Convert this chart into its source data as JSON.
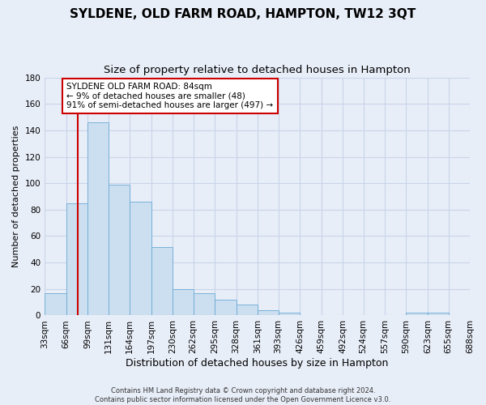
{
  "title": "SYLDENE, OLD FARM ROAD, HAMPTON, TW12 3QT",
  "subtitle": "Size of property relative to detached houses in Hampton",
  "xlabel": "Distribution of detached houses by size in Hampton",
  "ylabel": "Number of detached properties",
  "footer_line1": "Contains HM Land Registry data © Crown copyright and database right 2024.",
  "footer_line2": "Contains public sector information licensed under the Open Government Licence v3.0.",
  "bins": [
    33,
    66,
    99,
    131,
    164,
    197,
    230,
    262,
    295,
    328,
    361,
    393,
    426,
    459,
    492,
    524,
    557,
    590,
    623,
    655,
    688
  ],
  "bar_heights": [
    17,
    85,
    146,
    99,
    86,
    52,
    20,
    17,
    12,
    8,
    4,
    2,
    0,
    0,
    0,
    0,
    0,
    2,
    2,
    0
  ],
  "bar_color": "#ccdff0",
  "bar_edge_color": "#6aaad4",
  "property_line_x": 84,
  "property_line_color": "#cc0000",
  "annotation_text": "SYLDENE OLD FARM ROAD: 84sqm\n← 9% of detached houses are smaller (48)\n91% of semi-detached houses are larger (497) →",
  "annotation_box_color": "#ffffff",
  "annotation_box_edge": "#cc0000",
  "ylim": [
    0,
    180
  ],
  "yticks": [
    0,
    20,
    40,
    60,
    80,
    100,
    120,
    140,
    160,
    180
  ],
  "background_color": "#e8eef8",
  "grid_color": "#c8d4e8",
  "title_fontsize": 11,
  "subtitle_fontsize": 9.5,
  "xlabel_fontsize": 9,
  "ylabel_fontsize": 8,
  "tick_fontsize": 7.5,
  "annotation_fontsize": 7.5,
  "footer_fontsize": 6
}
